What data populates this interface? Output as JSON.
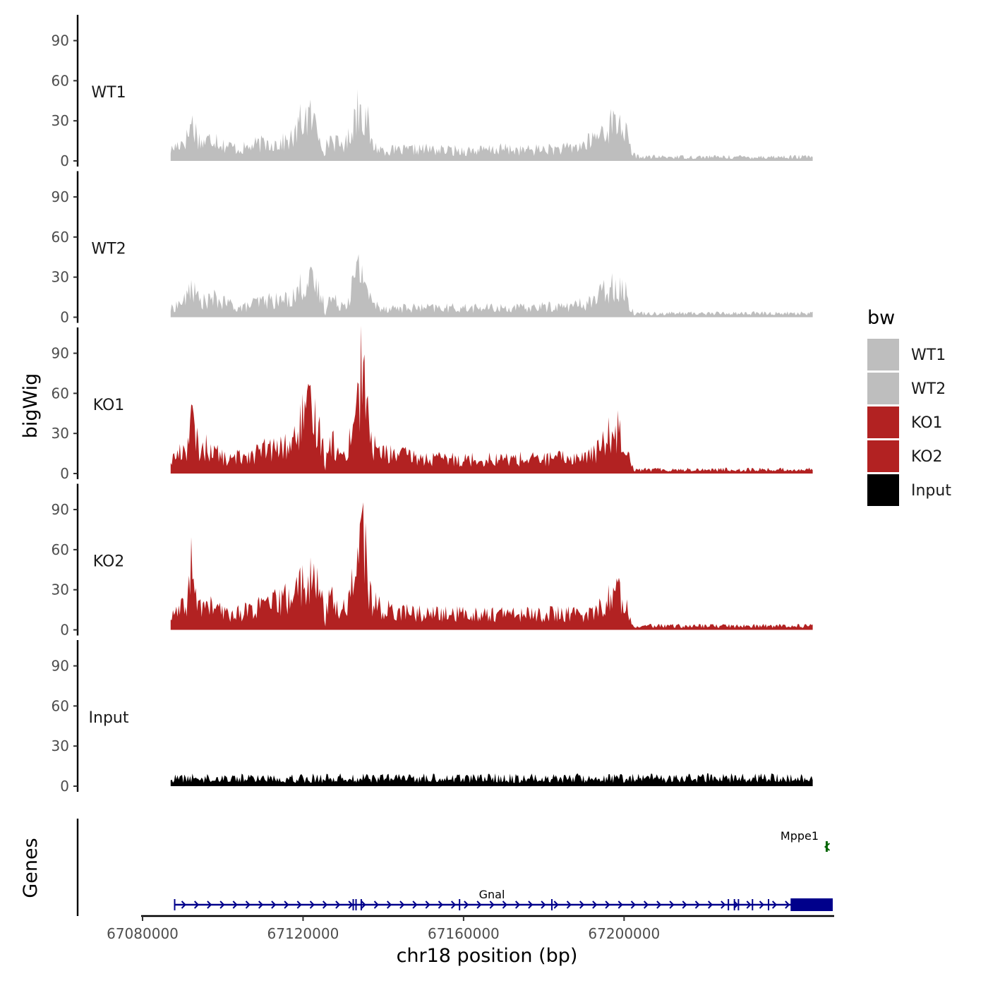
{
  "chart_data": {
    "type": "area",
    "ylabel": "bigWig",
    "xlabel": "chr18 position (bp)",
    "genes_label": "Genes",
    "ylim": [
      0,
      105
    ],
    "y_ticks": [
      0,
      30,
      60,
      90
    ],
    "x_range": [
      67080000,
      67252000
    ],
    "x_ticks": [
      67080000,
      67120000,
      67160000,
      67200000
    ],
    "x_tick_labels": [
      "67080000",
      "67120000",
      "67160000",
      "67200000"
    ],
    "x": [
      67087000,
      67089000,
      67091000,
      67092200,
      67093000,
      67094500,
      67096000,
      67098000,
      67100000,
      67102000,
      67104000,
      67106000,
      67108000,
      67110000,
      67112000,
      67114000,
      67116000,
      67118000,
      67119000,
      67120500,
      67122000,
      67123500,
      67125000,
      67125500,
      67126000,
      67127000,
      67129000,
      67131000,
      67132500,
      67133800,
      67135000,
      67136000,
      67137000,
      67139000,
      67141000,
      67145000,
      67150000,
      67155000,
      67160000,
      67165000,
      67170000,
      67175000,
      67180000,
      67185000,
      67190000,
      67193000,
      67195000,
      67197000,
      67198500,
      67200000,
      67201500,
      67202500,
      67204000,
      67210000,
      67220000,
      67230000,
      67240000,
      67247000
    ],
    "series": [
      {
        "name": "WT1",
        "color": "#bebebe",
        "values": [
          8,
          13,
          17,
          30,
          24,
          14,
          15,
          19,
          12,
          11,
          9,
          10,
          12,
          13,
          14,
          13,
          15,
          18,
          28,
          34,
          32,
          26,
          14,
          1,
          16,
          17,
          12,
          14,
          30,
          42,
          40,
          30,
          13,
          9,
          8,
          8,
          9,
          8,
          8,
          8,
          9,
          8,
          9,
          9,
          12,
          18,
          24,
          28,
          30,
          26,
          10,
          4,
          3,
          3,
          3,
          3,
          3,
          3
        ]
      },
      {
        "name": "WT2",
        "color": "#bebebe",
        "values": [
          6,
          10,
          14,
          26,
          18,
          12,
          12,
          14,
          11,
          10,
          7,
          8,
          11,
          12,
          13,
          12,
          14,
          16,
          22,
          27,
          26,
          22,
          12,
          1,
          13,
          14,
          10,
          12,
          26,
          36,
          34,
          24,
          11,
          8,
          7,
          7,
          7,
          7,
          7,
          7,
          7,
          7,
          8,
          8,
          10,
          14,
          20,
          24,
          25,
          22,
          8,
          3,
          3,
          3,
          3,
          3,
          3,
          3
        ]
      },
      {
        "name": "KO1",
        "color": "#b22222",
        "values": [
          10,
          15,
          20,
          42,
          28,
          17,
          20,
          17,
          12,
          10,
          13,
          15,
          15,
          18,
          18,
          19,
          21,
          25,
          36,
          45,
          45,
          38,
          22,
          1,
          25,
          26,
          13,
          17,
          40,
          62,
          85,
          45,
          22,
          17,
          15,
          14,
          11,
          11,
          11,
          11,
          11,
          11,
          11,
          12,
          12,
          16,
          24,
          32,
          33,
          28,
          12,
          3,
          3,
          3,
          3,
          3,
          3,
          3
        ]
      },
      {
        "name": "KO2",
        "color": "#b22222",
        "values": [
          9,
          14,
          19,
          50,
          24,
          18,
          19,
          17,
          13,
          12,
          13,
          15,
          16,
          18,
          20,
          21,
          24,
          28,
          34,
          38,
          36,
          32,
          22,
          1,
          24,
          24,
          14,
          18,
          42,
          60,
          78,
          40,
          22,
          17,
          15,
          14,
          12,
          12,
          12,
          12,
          12,
          12,
          12,
          12,
          12,
          14,
          20,
          26,
          28,
          24,
          10,
          3,
          3,
          3,
          3,
          3,
          3,
          3
        ]
      },
      {
        "name": "Input",
        "color": "#000000",
        "values": [
          5,
          6,
          6,
          6,
          6,
          6,
          6,
          6,
          6,
          6,
          6,
          6,
          6,
          6,
          6,
          6,
          6,
          6,
          6,
          6,
          6,
          6,
          6,
          6,
          6,
          6,
          6,
          6,
          6,
          6,
          6,
          6,
          6,
          6,
          6,
          6,
          6,
          6,
          6,
          6,
          6,
          6,
          6,
          6,
          6,
          6,
          6,
          6,
          6,
          6,
          6,
          6,
          6,
          6,
          6,
          6,
          6,
          6
        ]
      }
    ],
    "legend": {
      "title": "bw",
      "position": "right",
      "entries": [
        {
          "label": "WT1",
          "color": "#bebebe"
        },
        {
          "label": "WT2",
          "color": "#bebebe"
        },
        {
          "label": "KO1",
          "color": "#b22222"
        },
        {
          "label": "KO2",
          "color": "#b22222"
        },
        {
          "label": "Input",
          "color": "#000000"
        }
      ]
    },
    "genes": [
      {
        "name": "Gnal",
        "start": 67088000,
        "end": 67252000,
        "strand": "+",
        "color": "#00008b",
        "exons": [
          67088000,
          67132500,
          67133200,
          67134500,
          67159000,
          67182000,
          67226000,
          67227500,
          67228500,
          67232000,
          67236000
        ]
      },
      {
        "name": "Mppe1",
        "start": 67250500,
        "end": 67251000,
        "strand": "-",
        "color": "#006400",
        "exons": []
      }
    ],
    "grid": false
  }
}
